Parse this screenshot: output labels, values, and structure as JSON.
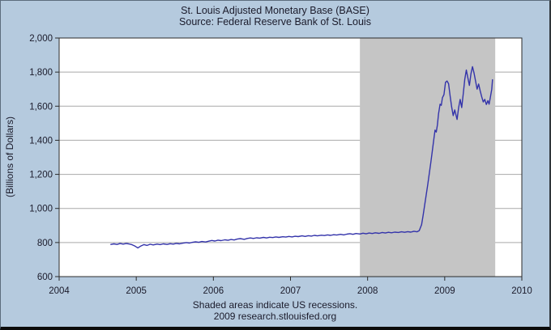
{
  "header": {
    "title": "St. Louis Adjusted Monetary Base (BASE)",
    "subtitle": "Source: Federal Reserve Bank of St. Louis"
  },
  "footer": {
    "note": "Shaded areas indicate US recessions.",
    "credit": "2009 research.stlouisfed.org"
  },
  "colors": {
    "background": "#b5cade",
    "plot_background": "#ffffff",
    "recession_band": "#c5c5c5",
    "line": "#3333aa",
    "grid": "#a9a9a9",
    "axis": "#2b2b2b",
    "text": "#1b1b2b"
  },
  "chart_data": {
    "type": "line",
    "title": "St. Louis Adjusted Monetary Base (BASE)",
    "subtitle": "Source: Federal Reserve Bank of St. Louis",
    "xlabel": "",
    "ylabel": "(Billions of Dollars)",
    "xlim": [
      2004,
      2010
    ],
    "ylim": [
      600,
      2000
    ],
    "grid": "horizontal",
    "legend_position": "none",
    "x_ticks": [
      {
        "v": 2004,
        "label": "2004"
      },
      {
        "v": 2005,
        "label": "2005"
      },
      {
        "v": 2006,
        "label": "2006"
      },
      {
        "v": 2007,
        "label": "2007"
      },
      {
        "v": 2008,
        "label": "2008"
      },
      {
        "v": 2009,
        "label": "2009"
      },
      {
        "v": 2010,
        "label": "2010"
      }
    ],
    "y_ticks": [
      {
        "v": 600,
        "label": "600"
      },
      {
        "v": 800,
        "label": "800"
      },
      {
        "v": 1000,
        "label": "1,000"
      },
      {
        "v": 1200,
        "label": "1,200"
      },
      {
        "v": 1400,
        "label": "1,400"
      },
      {
        "v": 1600,
        "label": "1,600"
      },
      {
        "v": 1800,
        "label": "1,800"
      },
      {
        "v": 2000,
        "label": "2,000"
      }
    ],
    "recession_bands": [
      {
        "start": 2007.9,
        "end": 2009.655,
        "meaning": "US recession"
      }
    ],
    "series": [
      {
        "name": "St. Louis Adjusted Monetary Base, Billions of Dollars",
        "color": "#3333aa",
        "points": [
          [
            2004.67,
            789
          ],
          [
            2004.71,
            792
          ],
          [
            2004.75,
            789
          ],
          [
            2004.79,
            794
          ],
          [
            2004.83,
            791
          ],
          [
            2004.87,
            794
          ],
          [
            2004.9,
            792
          ],
          [
            2004.94,
            788
          ],
          [
            2004.98,
            780
          ],
          [
            2005.02,
            768
          ],
          [
            2005.06,
            780
          ],
          [
            2005.1,
            788
          ],
          [
            2005.14,
            783
          ],
          [
            2005.18,
            790
          ],
          [
            2005.22,
            786
          ],
          [
            2005.27,
            791
          ],
          [
            2005.31,
            788
          ],
          [
            2005.35,
            792
          ],
          [
            2005.4,
            789
          ],
          [
            2005.44,
            793
          ],
          [
            2005.48,
            791
          ],
          [
            2005.52,
            795
          ],
          [
            2005.56,
            792
          ],
          [
            2005.6,
            796
          ],
          [
            2005.65,
            800
          ],
          [
            2005.69,
            797
          ],
          [
            2005.73,
            801
          ],
          [
            2005.77,
            804
          ],
          [
            2005.81,
            801
          ],
          [
            2005.85,
            806
          ],
          [
            2005.9,
            803
          ],
          [
            2005.94,
            808
          ],
          [
            2005.98,
            812
          ],
          [
            2006.02,
            809
          ],
          [
            2006.06,
            814
          ],
          [
            2006.1,
            811
          ],
          [
            2006.15,
            816
          ],
          [
            2006.19,
            813
          ],
          [
            2006.23,
            818
          ],
          [
            2006.27,
            815
          ],
          [
            2006.31,
            820
          ],
          [
            2006.35,
            823
          ],
          [
            2006.4,
            819
          ],
          [
            2006.44,
            824
          ],
          [
            2006.48,
            827
          ],
          [
            2006.52,
            824
          ],
          [
            2006.56,
            828
          ],
          [
            2006.6,
            826
          ],
          [
            2006.65,
            830
          ],
          [
            2006.69,
            827
          ],
          [
            2006.73,
            831
          ],
          [
            2006.77,
            829
          ],
          [
            2006.81,
            833
          ],
          [
            2006.85,
            830
          ],
          [
            2006.9,
            834
          ],
          [
            2006.94,
            832
          ],
          [
            2006.98,
            836
          ],
          [
            2007.02,
            833
          ],
          [
            2007.06,
            837
          ],
          [
            2007.1,
            835
          ],
          [
            2007.15,
            839
          ],
          [
            2007.19,
            836
          ],
          [
            2007.23,
            840
          ],
          [
            2007.27,
            838
          ],
          [
            2007.31,
            842
          ],
          [
            2007.35,
            839
          ],
          [
            2007.4,
            843
          ],
          [
            2007.44,
            841
          ],
          [
            2007.48,
            845
          ],
          [
            2007.52,
            842
          ],
          [
            2007.56,
            846
          ],
          [
            2007.6,
            844
          ],
          [
            2007.65,
            848
          ],
          [
            2007.69,
            845
          ],
          [
            2007.73,
            849
          ],
          [
            2007.77,
            852
          ],
          [
            2007.81,
            848
          ],
          [
            2007.85,
            853
          ],
          [
            2007.9,
            850
          ],
          [
            2007.94,
            855
          ],
          [
            2007.98,
            851
          ],
          [
            2008.02,
            856
          ],
          [
            2008.06,
            853
          ],
          [
            2008.1,
            857
          ],
          [
            2008.15,
            854
          ],
          [
            2008.19,
            859
          ],
          [
            2008.23,
            856
          ],
          [
            2008.27,
            860
          ],
          [
            2008.31,
            857
          ],
          [
            2008.35,
            861
          ],
          [
            2008.4,
            859
          ],
          [
            2008.44,
            863
          ],
          [
            2008.48,
            860
          ],
          [
            2008.52,
            864
          ],
          [
            2008.56,
            861
          ],
          [
            2008.6,
            866
          ],
          [
            2008.64,
            863
          ],
          [
            2008.67,
            870
          ],
          [
            2008.7,
            905
          ],
          [
            2008.72,
            960
          ],
          [
            2008.74,
            1020
          ],
          [
            2008.76,
            1080
          ],
          [
            2008.78,
            1140
          ],
          [
            2008.8,
            1205
          ],
          [
            2008.82,
            1270
          ],
          [
            2008.84,
            1340
          ],
          [
            2008.86,
            1410
          ],
          [
            2008.875,
            1460
          ],
          [
            2008.89,
            1448
          ],
          [
            2008.905,
            1490
          ],
          [
            2008.92,
            1555
          ],
          [
            2008.94,
            1612
          ],
          [
            2008.955,
            1605
          ],
          [
            2008.97,
            1650
          ],
          [
            2008.99,
            1668
          ],
          [
            2009.01,
            1740
          ],
          [
            2009.03,
            1748
          ],
          [
            2009.05,
            1732
          ],
          [
            2009.07,
            1660
          ],
          [
            2009.09,
            1595
          ],
          [
            2009.11,
            1545
          ],
          [
            2009.13,
            1578
          ],
          [
            2009.16,
            1522
          ],
          [
            2009.18,
            1592
          ],
          [
            2009.2,
            1640
          ],
          [
            2009.22,
            1592
          ],
          [
            2009.24,
            1672
          ],
          [
            2009.26,
            1758
          ],
          [
            2009.28,
            1812
          ],
          [
            2009.3,
            1766
          ],
          [
            2009.32,
            1722
          ],
          [
            2009.34,
            1790
          ],
          [
            2009.36,
            1832
          ],
          [
            2009.38,
            1795
          ],
          [
            2009.4,
            1748
          ],
          [
            2009.42,
            1700
          ],
          [
            2009.44,
            1730
          ],
          [
            2009.46,
            1690
          ],
          [
            2009.48,
            1655
          ],
          [
            2009.5,
            1625
          ],
          [
            2009.52,
            1640
          ],
          [
            2009.54,
            1610
          ],
          [
            2009.56,
            1632
          ],
          [
            2009.575,
            1612
          ],
          [
            2009.59,
            1648
          ],
          [
            2009.61,
            1700
          ],
          [
            2009.62,
            1755
          ]
        ]
      }
    ]
  }
}
